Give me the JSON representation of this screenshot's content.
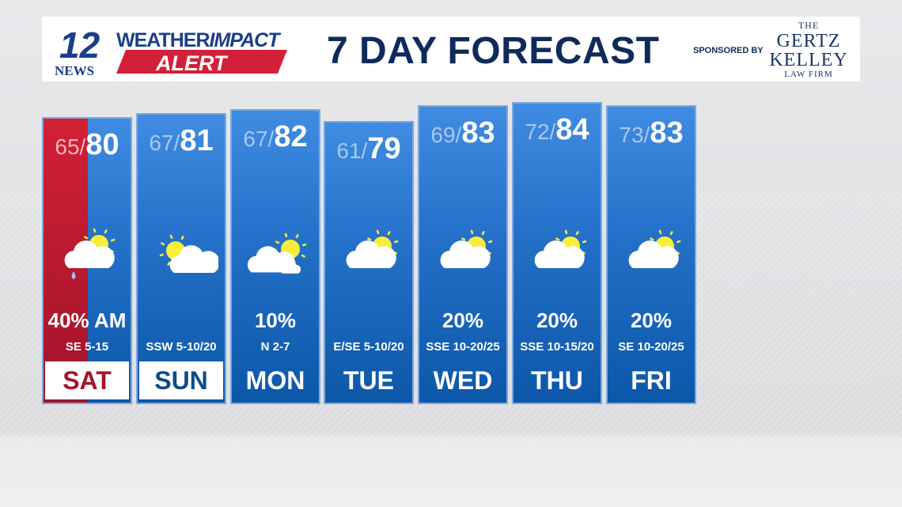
{
  "header": {
    "logo_number": "12",
    "logo_news": "NEWS",
    "logo_line1": "WEATHER",
    "logo_line1b": "IMPACT",
    "logo_line2": "ALERT",
    "title": "7 DAY FORECAST",
    "sponsored_by": "SPONSORED BY",
    "sponsor_the": "THE",
    "sponsor_name1": "GERTZ",
    "sponsor_name2": "KELLEY",
    "sponsor_sub": "LAW FIRM"
  },
  "colors": {
    "navy": "#0f2a5a",
    "red": "#d32035",
    "blue": "#2470c8"
  },
  "days": [
    {
      "day": "SAT",
      "low": "65/",
      "high": "80",
      "pop": "40% AM",
      "wind": "SE 5-15",
      "icon": "rain-partly-sunny-icon",
      "highlight": true
    },
    {
      "day": "SUN",
      "low": "67/",
      "high": "81",
      "pop": "",
      "wind": "SSW 5-10/20",
      "icon": "partly-sunny-icon",
      "highlight": true
    },
    {
      "day": "MON",
      "low": "67/",
      "high": "82",
      "pop": "10%",
      "wind": "N 2-7",
      "icon": "partly-cloudy-icon"
    },
    {
      "day": "TUE",
      "low": "61/",
      "high": "79",
      "pop": "",
      "wind": "E/SE 5-10/20",
      "icon": "mostly-cloudy-icon"
    },
    {
      "day": "WED",
      "low": "69/",
      "high": "83",
      "pop": "20%",
      "wind": "SSE 10-20/25",
      "icon": "mostly-cloudy-icon"
    },
    {
      "day": "THU",
      "low": "72/",
      "high": "84",
      "pop": "20%",
      "wind": "SSE 10-15/20",
      "icon": "mostly-cloudy-icon"
    },
    {
      "day": "FRI",
      "low": "73/",
      "high": "83",
      "pop": "20%",
      "wind": "SE 10-20/25",
      "icon": "mostly-cloudy-icon"
    }
  ]
}
